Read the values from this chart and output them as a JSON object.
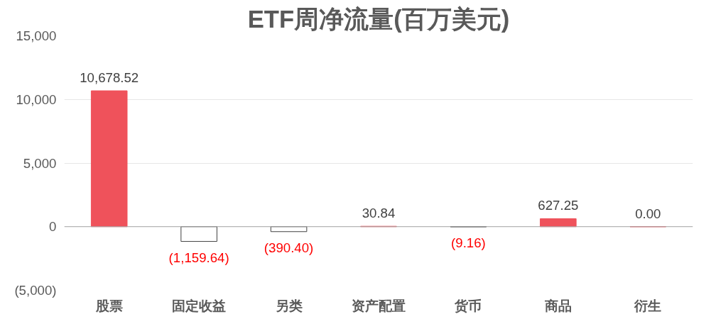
{
  "chart_data": {
    "type": "bar",
    "title": "ETF周净流量(百万美元)",
    "categories": [
      "股票",
      "固定收益",
      "另类",
      "资产配置",
      "货币",
      "商品",
      "衍生"
    ],
    "values": [
      10678.52,
      -1159.64,
      -390.4,
      30.84,
      -9.16,
      627.25,
      0.0
    ],
    "colors": [
      "#ef525b",
      "#ffffff",
      "#ffffff",
      "#ef525b",
      "#ffffff",
      "#ef525b",
      "#ef525b"
    ],
    "value_labels": [
      "10,678.52",
      "(1,159.64)",
      "(390.40)",
      "30.84",
      "(9.16)",
      "627.25",
      "0.00"
    ],
    "ylim": [
      -5000,
      15000
    ],
    "yticks": [
      {
        "value": -5000,
        "label": "(5,000)"
      },
      {
        "value": 0,
        "label": "0"
      },
      {
        "value": 5000,
        "label": "5,000"
      },
      {
        "value": 10000,
        "label": "10,000"
      },
      {
        "value": 15000,
        "label": "15,000"
      }
    ],
    "grid": "y"
  }
}
